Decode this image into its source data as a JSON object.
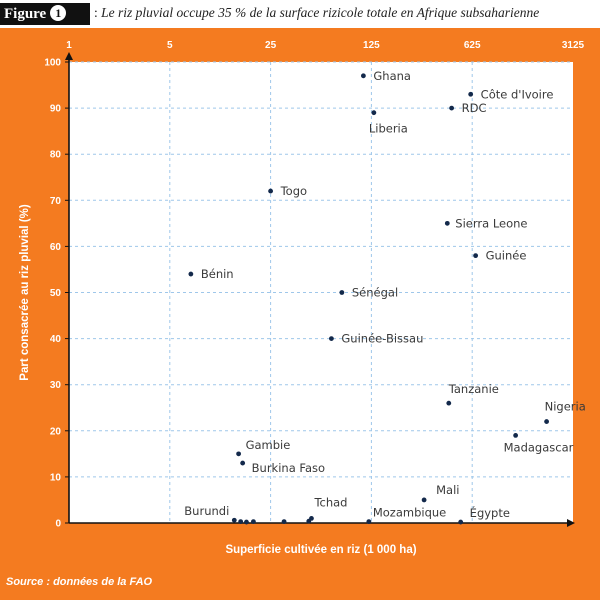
{
  "figure": {
    "label": "Figure",
    "number": "1",
    "title": "Le riz pluvial occupe 35 % de la surface rizicole totale en Afrique subsaharienne"
  },
  "source": "Source : données de la FAO",
  "chart_data": {
    "type": "scatter",
    "xlabel": "Superficie cultivée en riz (1 000 ha)",
    "ylabel": "Part consacrée au riz pluvial (%)",
    "xscale": "log5",
    "xlim": [
      1,
      3125
    ],
    "ylim": [
      0,
      100
    ],
    "xticks": [
      "1",
      "5",
      "25",
      "125",
      "625",
      "3125"
    ],
    "yticks": [
      "0",
      "10",
      "20",
      "30",
      "40",
      "50",
      "60",
      "70",
      "80",
      "90",
      "100"
    ],
    "grid": true,
    "points": [
      {
        "label": "Ghana",
        "x": 110,
        "y": 97
      },
      {
        "label": "Côte d'Ivoire",
        "x": 610,
        "y": 93
      },
      {
        "label": "RDC",
        "x": 450,
        "y": 90
      },
      {
        "label": "Liberia",
        "x": 130,
        "y": 89
      },
      {
        "label": "Togo",
        "x": 25,
        "y": 72
      },
      {
        "label": "Sierra Leone",
        "x": 420,
        "y": 65
      },
      {
        "label": "Guinée",
        "x": 660,
        "y": 58
      },
      {
        "label": "Bénin",
        "x": 7,
        "y": 54
      },
      {
        "label": "Sénégal",
        "x": 78,
        "y": 50
      },
      {
        "label": "Guinée-Bissau",
        "x": 66,
        "y": 40
      },
      {
        "label": "Tanzanie",
        "x": 430,
        "y": 26
      },
      {
        "label": "Nigeria",
        "x": 2050,
        "y": 22
      },
      {
        "label": "Madagascar",
        "x": 1250,
        "y": 19
      },
      {
        "label": "Gambie",
        "x": 15,
        "y": 15
      },
      {
        "label": "Burkina Faso",
        "x": 16,
        "y": 13
      },
      {
        "label": "Mali",
        "x": 290,
        "y": 5
      },
      {
        "label": "Tchad",
        "x": 48,
        "y": 1
      },
      {
        "label": "Burundi",
        "x": 14,
        "y": 0.6
      },
      {
        "label": "Mozambique",
        "x": 120,
        "y": 0.3
      },
      {
        "label": "Égypte",
        "x": 520,
        "y": 0.2
      },
      {
        "label": "",
        "x": 15.5,
        "y": 0.3
      },
      {
        "label": "",
        "x": 17,
        "y": 0.2
      },
      {
        "label": "",
        "x": 19,
        "y": 0.3
      },
      {
        "label": "",
        "x": 31,
        "y": 0.3
      },
      {
        "label": "",
        "x": 46,
        "y": 0.4
      }
    ]
  }
}
